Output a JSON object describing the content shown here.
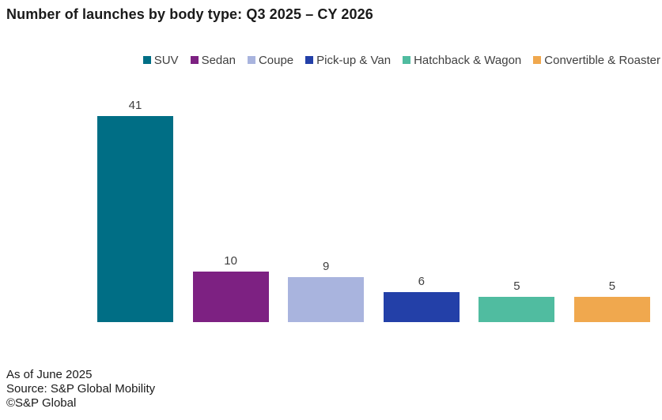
{
  "title": "Number of launches by body type: Q3 2025 – CY 2026",
  "chart_data": {
    "type": "bar",
    "title": "Number of launches by body type: Q3 2025 – CY 2026",
    "categories": [
      "SUV",
      "Sedan",
      "Coupe",
      "Pick-up & Van",
      "Hatchback & Wagon",
      "Convertible & Roaster"
    ],
    "values": [
      41,
      10,
      9,
      6,
      5,
      5
    ],
    "colors": [
      "#006E85",
      "#7D2182",
      "#A9B4DE",
      "#2340A8",
      "#50BCA0",
      "#F0A84E"
    ],
    "xlabel": "",
    "ylabel": "",
    "ylim": [
      0,
      45
    ],
    "grid": false,
    "axes_visible": false,
    "data_labels": true,
    "legend_position": "top-right",
    "label_color": "#404040"
  },
  "footer": {
    "line1": "As of June 2025",
    "line2": "Source: S&P Global Mobility",
    "line3": "©S&P Global"
  }
}
